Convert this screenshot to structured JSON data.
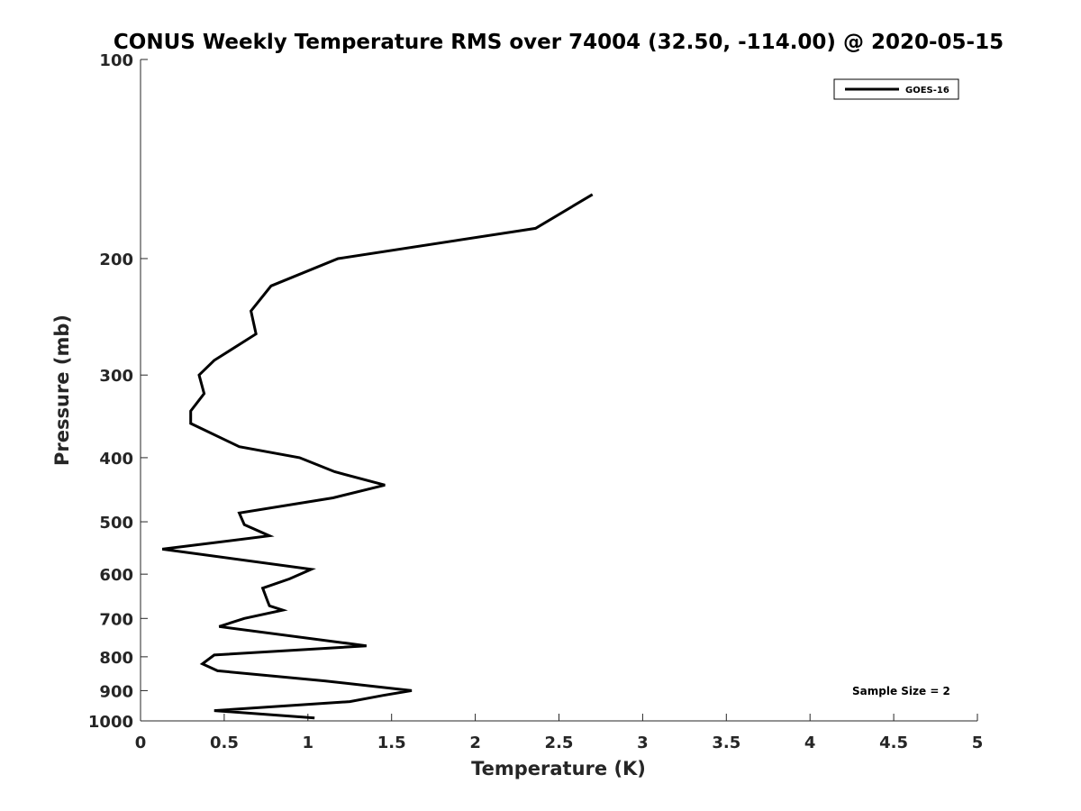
{
  "chart_data": {
    "type": "line",
    "title": "CONUS Weekly Temperature RMS over 74004 (32.50, -114.00) @ 2020-05-15",
    "xlabel": "Temperature (K)",
    "ylabel": "Pressure (mb)",
    "xlim": [
      0,
      5
    ],
    "ylim": [
      100,
      1000
    ],
    "y_scale": "log",
    "y_reversed": true,
    "x_ticks": [
      "0",
      "0.5",
      "1",
      "1.5",
      "2",
      "2.5",
      "3",
      "3.5",
      "4",
      "4.5",
      "5"
    ],
    "y_ticks": [
      "100",
      "200",
      "300",
      "400",
      "500",
      "600",
      "700",
      "800",
      "900",
      "1000"
    ],
    "grid": false,
    "legend_position": "top-right",
    "annotation": "Sample Size = 2",
    "series": [
      {
        "name": "GOES-16",
        "color": "#000000",
        "x": [
          2.7,
          2.36,
          1.18,
          0.78,
          0.66,
          0.69,
          0.44,
          0.35,
          0.38,
          0.3,
          0.3,
          0.59,
          0.95,
          1.16,
          1.46,
          1.15,
          0.59,
          0.62,
          0.77,
          0.13,
          1.02,
          0.89,
          0.73,
          0.76,
          0.77,
          0.85,
          0.62,
          0.47,
          1.35,
          0.44,
          0.37,
          0.46,
          1.1,
          1.62,
          1.45,
          1.25,
          0.44,
          1.04
        ],
        "y": [
          160,
          180,
          200,
          220,
          240,
          260,
          285,
          300,
          320,
          340,
          355,
          385,
          400,
          420,
          440,
          460,
          485,
          505,
          525,
          550,
          590,
          610,
          630,
          660,
          670,
          680,
          700,
          720,
          770,
          795,
          820,
          840,
          870,
          900,
          915,
          935,
          965,
          990
        ]
      }
    ]
  }
}
